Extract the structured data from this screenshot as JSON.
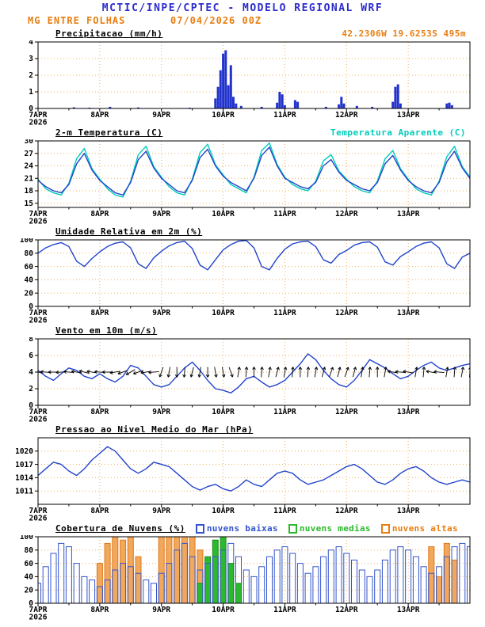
{
  "header": {
    "title": "MCTIC/INPE/CPTEC - MODELO REGIONAL WRF",
    "station": "MG ENTRE FOLHAS",
    "run": "07/04/2026 00Z",
    "location": "42.2306W 19.6253S 495m"
  },
  "colors": {
    "title_blue": "#2b2bcc",
    "orange": "#e87d10",
    "cyan": "#00ccbb",
    "line_blue": "#2244cc",
    "bar_blue": "#2233cc",
    "grid": "#efb05a",
    "cloud_low": "#3355cc",
    "cloud_mid": "#2eb82e",
    "cloud_high": "#e07818"
  },
  "x_axis": {
    "hours_total": 168,
    "tick_hours": [
      0,
      24,
      48,
      72,
      96,
      120,
      144
    ],
    "tick_labels": [
      "7APR",
      "8APR",
      "9APR",
      "10APR",
      "11APR",
      "12APR",
      "13APR"
    ],
    "year_label": "2026"
  },
  "chart_data": [
    {
      "type": "bar",
      "title": "Precipitacao (mm/h)",
      "ylim": [
        0,
        4
      ],
      "yticks": [
        0,
        1,
        2,
        3,
        4
      ],
      "series": [
        {
          "name": "precipitacao",
          "type": "bar",
          "color": "#2233cc",
          "points": [
            [
              14,
              0.07
            ],
            [
              20,
              0.05
            ],
            [
              28,
              0.1
            ],
            [
              39,
              0.06
            ],
            [
              59,
              0.05
            ],
            [
              69,
              0.6
            ],
            [
              70,
              1.3
            ],
            [
              71,
              2.3
            ],
            [
              72,
              3.3
            ],
            [
              73,
              3.5
            ],
            [
              74,
              1.4
            ],
            [
              75,
              2.6
            ],
            [
              76,
              0.7
            ],
            [
              77,
              0.3
            ],
            [
              79,
              0.15
            ],
            [
              87,
              0.1
            ],
            [
              93,
              0.35
            ],
            [
              94,
              1.0
            ],
            [
              95,
              0.85
            ],
            [
              96,
              0.2
            ],
            [
              100,
              0.5
            ],
            [
              101,
              0.4
            ],
            [
              112,
              0.1
            ],
            [
              117,
              0.25
            ],
            [
              118,
              0.7
            ],
            [
              119,
              0.3
            ],
            [
              124,
              0.15
            ],
            [
              130,
              0.1
            ],
            [
              138,
              0.4
            ],
            [
              139,
              1.3
            ],
            [
              140,
              1.45
            ],
            [
              141,
              0.3
            ],
            [
              159,
              0.3
            ],
            [
              160,
              0.35
            ],
            [
              161,
              0.2
            ]
          ]
        }
      ]
    },
    {
      "type": "line",
      "title": "2-m Temperatura (C)",
      "extra_title": "Temperatura Aparente (C)",
      "ylim": [
        14,
        30
      ],
      "yticks": [
        15,
        18,
        21,
        24,
        27,
        30
      ],
      "series": [
        {
          "name": "temperatura-aparente",
          "type": "line",
          "color": "#00ccbb",
          "start": 0,
          "step": 3,
          "values": [
            20.8,
            18.5,
            17.5,
            17,
            19.8,
            25.7,
            28.2,
            23.3,
            20.8,
            18.5,
            17,
            16.5,
            20.3,
            26.7,
            28.7,
            23.8,
            21.3,
            19,
            17.5,
            17,
            20.8,
            27.2,
            29.2,
            24.3,
            21.8,
            19.5,
            18.5,
            17.5,
            21.3,
            27.7,
            29.5,
            24.3,
            21.3,
            19.5,
            18.5,
            18,
            20.3,
            25.2,
            26.7,
            22.8,
            20.8,
            19,
            18,
            17.5,
            20.3,
            25.7,
            27.7,
            23.3,
            20.8,
            18.5,
            17.5,
            17,
            20.3,
            26.2,
            28.7,
            23.8,
            21.3
          ]
        },
        {
          "name": "temperatura-2m",
          "type": "line",
          "color": "#2244cc",
          "start": 0,
          "step": 3,
          "values": [
            20.5,
            19,
            18,
            17.5,
            19.5,
            24.5,
            27,
            23,
            20.5,
            19,
            17.5,
            17,
            20,
            25.5,
            27.5,
            23.5,
            21,
            19.5,
            18,
            17.5,
            20.5,
            26,
            28,
            24,
            21.5,
            20,
            19,
            18,
            21,
            26.5,
            28.5,
            24,
            21,
            20,
            19,
            18.5,
            20,
            24,
            25.5,
            22.5,
            20.5,
            19.5,
            18.5,
            18,
            20,
            24.5,
            26.5,
            23,
            20.5,
            19,
            18,
            17.5,
            20,
            25,
            27.5,
            23.5,
            21
          ]
        }
      ]
    },
    {
      "type": "line",
      "title": "Umidade Relativa em 2m (%)",
      "ylim": [
        0,
        100
      ],
      "yticks": [
        0,
        20,
        40,
        60,
        80,
        100
      ],
      "series": [
        {
          "name": "umidade-relativa",
          "type": "line",
          "color": "#2244cc",
          "start": 0,
          "step": 3,
          "values": [
            80,
            88,
            93,
            96,
            90,
            68,
            60,
            72,
            82,
            90,
            95,
            97,
            88,
            64,
            57,
            73,
            83,
            91,
            96,
            98,
            87,
            62,
            55,
            70,
            85,
            93,
            98,
            99,
            88,
            60,
            55,
            72,
            86,
            94,
            97,
            98,
            90,
            70,
            65,
            78,
            84,
            92,
            96,
            97,
            89,
            67,
            62,
            75,
            82,
            90,
            95,
            97,
            88,
            64,
            57,
            74,
            80
          ]
        }
      ]
    },
    {
      "type": "line",
      "title": "Vento em 10m (m/s)",
      "ylim": [
        0,
        8
      ],
      "yticks": [
        0,
        2,
        4,
        6,
        8
      ],
      "series": [
        {
          "name": "velocidade-vento",
          "type": "line",
          "color": "#2244cc",
          "start": 0,
          "step": 3,
          "values": [
            4.2,
            3.5,
            3,
            3.8,
            4.5,
            4.2,
            3.5,
            3.2,
            3.8,
            3.2,
            2.8,
            3.5,
            4.8,
            4.5,
            3.5,
            2.5,
            2.2,
            2.5,
            3.5,
            4.5,
            5.2,
            4.2,
            3,
            2,
            1.8,
            1.5,
            2.2,
            3.2,
            3.5,
            2.8,
            2.2,
            2.5,
            3,
            4,
            5,
            6.2,
            5.5,
            4.2,
            3.2,
            2.5,
            2.2,
            3,
            4.2,
            5.5,
            5,
            4.5,
            3.8,
            3.2,
            3.5,
            4.2,
            4.8,
            5.2,
            4.5,
            4.2,
            4.5,
            4.8,
            5
          ]
        },
        {
          "name": "vetores-vento",
          "type": "barbs",
          "color": "#000000",
          "level": 4,
          "start": 0,
          "step": 3,
          "angles": [
            170,
            175,
            180,
            185,
            175,
            170,
            165,
            170,
            175,
            180,
            190,
            200,
            210,
            200,
            190,
            185,
            250,
            260,
            270,
            265,
            255,
            260,
            270,
            280,
            280,
            290,
            80,
            85,
            90,
            85,
            80,
            75,
            80,
            85,
            90,
            85,
            80,
            75,
            70,
            75,
            70,
            75,
            80,
            85,
            90,
            80,
            170,
            175,
            170,
            80,
            85,
            170,
            175,
            80,
            85,
            80,
            85
          ]
        }
      ]
    },
    {
      "type": "line",
      "title": "Pressao ao Nivel Medio do Mar (hPa)",
      "ylim": [
        1008,
        1023
      ],
      "yticks": [
        1011,
        1014,
        1017,
        1020
      ],
      "series": [
        {
          "name": "pressao-nivel-mar",
          "type": "line",
          "color": "#2244cc",
          "start": 0,
          "step": 3,
          "values": [
            1014.5,
            1016,
            1017.5,
            1017,
            1015.5,
            1014.5,
            1016,
            1018,
            1019.5,
            1021,
            1020,
            1018,
            1016,
            1015,
            1016,
            1017.5,
            1017,
            1016.5,
            1015,
            1013.5,
            1012,
            1011.2,
            1012,
            1012.5,
            1011.5,
            1011,
            1012,
            1013.5,
            1012.5,
            1012,
            1013.5,
            1015,
            1015.5,
            1015,
            1013.5,
            1012.5,
            1013,
            1013.5,
            1014.5,
            1015.5,
            1016.5,
            1017,
            1016,
            1014.5,
            1013,
            1012.5,
            1013.5,
            1015,
            1016,
            1016.5,
            1015.5,
            1014,
            1013,
            1012.5,
            1013,
            1013.5,
            1013
          ]
        }
      ]
    },
    {
      "type": "bar",
      "title": "Cobertura de Nuvens (%)",
      "ylim": [
        0,
        100
      ],
      "yticks": [
        0,
        20,
        40,
        60,
        80,
        100
      ],
      "legend": [
        {
          "label": "nuvens baixas",
          "color": "#3355cc"
        },
        {
          "label": "nuvens medias",
          "color": "#2eb82e"
        },
        {
          "label": "nuvens altas",
          "color": "#e87d10"
        }
      ],
      "series": [
        {
          "name": "nuvens-altas",
          "type": "bars",
          "color": "#e07818",
          "fill": "#f2a85c",
          "width": 7,
          "start": 0,
          "step": 3,
          "values": [
            0,
            0,
            0,
            0,
            0,
            0,
            0,
            0,
            60,
            90,
            100,
            95,
            100,
            70,
            0,
            0,
            100,
            100,
            100,
            100,
            100,
            80,
            0,
            0,
            0,
            0,
            0,
            0,
            0,
            0,
            0,
            0,
            0,
            0,
            0,
            0,
            0,
            0,
            0,
            0,
            0,
            0,
            0,
            0,
            0,
            0,
            0,
            0,
            0,
            0,
            0,
            85,
            40,
            90,
            65,
            0,
            0
          ]
        },
        {
          "name": "nuvens-medias",
          "type": "bars",
          "color": "#1a8c1a",
          "fill": "#2eb82e",
          "width": 7,
          "start": 0,
          "step": 3,
          "values": [
            0,
            0,
            0,
            0,
            0,
            0,
            0,
            0,
            0,
            0,
            0,
            0,
            0,
            0,
            0,
            0,
            0,
            0,
            0,
            0,
            0,
            30,
            70,
            95,
            100,
            60,
            30,
            0,
            0,
            0,
            0,
            0,
            0,
            0,
            0,
            0,
            0,
            0,
            0,
            0,
            0,
            0,
            0,
            0,
            0,
            0,
            0,
            0,
            0,
            0,
            0,
            0,
            0,
            0,
            0,
            0,
            0
          ]
        },
        {
          "name": "nuvens-baixas",
          "type": "bars",
          "color": "#3355cc",
          "fill": "none",
          "width": 7,
          "start": 0,
          "step": 3,
          "values": [
            30,
            55,
            75,
            90,
            85,
            60,
            40,
            35,
            25,
            35,
            50,
            60,
            55,
            45,
            35,
            30,
            45,
            60,
            80,
            90,
            70,
            50,
            60,
            70,
            80,
            90,
            70,
            50,
            40,
            55,
            70,
            80,
            85,
            75,
            60,
            45,
            55,
            70,
            80,
            85,
            75,
            65,
            50,
            40,
            50,
            65,
            80,
            85,
            80,
            70,
            55,
            45,
            55,
            70,
            85,
            90,
            85
          ]
        }
      ]
    }
  ]
}
